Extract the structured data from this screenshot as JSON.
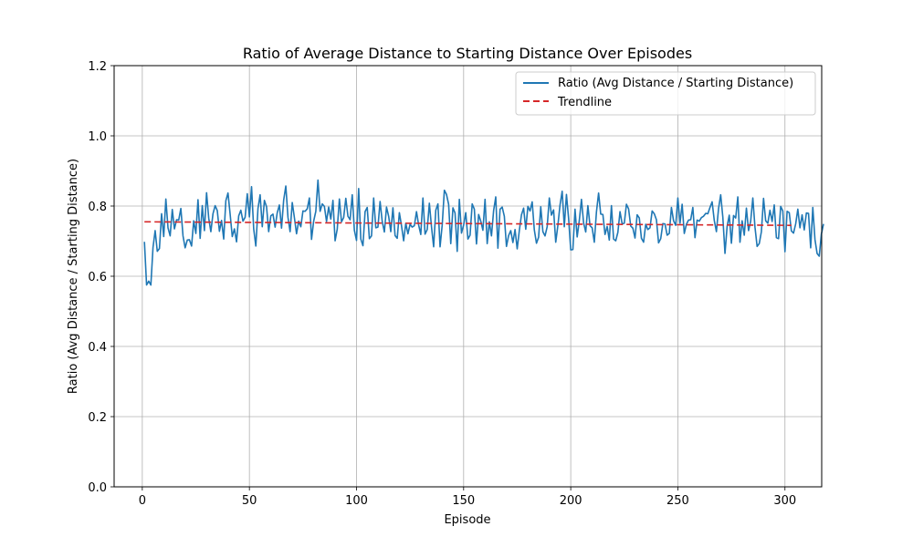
{
  "chart_data": {
    "type": "line",
    "title": "Ratio of Average Distance to Starting Distance Over Episodes",
    "xlabel": "Episode",
    "ylabel": "Ratio (Avg Distance / Starting Distance)",
    "xlim": [
      -13.15,
      317.15
    ],
    "ylim": [
      0,
      1.2
    ],
    "xticks": [
      0,
      50,
      100,
      150,
      200,
      250,
      300
    ],
    "xtick_labels": [
      "0",
      "50",
      "100",
      "150",
      "200",
      "250",
      "300"
    ],
    "yticks": [
      0,
      0.2,
      0.4,
      0.6,
      0.8,
      1.0,
      1.2
    ],
    "ytick_labels": [
      "0.0",
      "0.2",
      "0.4",
      "0.6",
      "0.8",
      "1.0",
      "1.2"
    ],
    "grid": true,
    "legend_position": "top-right",
    "series": [
      {
        "name": "Ratio (Avg Distance / Starting Distance)",
        "color": "#1f77b4",
        "style": "solid",
        "x_start": 1,
        "x_step": 1,
        "values": [
          0.698,
          0.575,
          0.586,
          0.575,
          0.682,
          0.73,
          0.671,
          0.679,
          0.778,
          0.713,
          0.82,
          0.738,
          0.715,
          0.79,
          0.735,
          0.761,
          0.76,
          0.793,
          0.715,
          0.681,
          0.703,
          0.704,
          0.686,
          0.758,
          0.722,
          0.818,
          0.708,
          0.801,
          0.73,
          0.838,
          0.766,
          0.727,
          0.778,
          0.801,
          0.787,
          0.728,
          0.759,
          0.706,
          0.815,
          0.837,
          0.777,
          0.713,
          0.735,
          0.698,
          0.772,
          0.788,
          0.757,
          0.768,
          0.835,
          0.769,
          0.855,
          0.735,
          0.686,
          0.793,
          0.832,
          0.741,
          0.816,
          0.798,
          0.727,
          0.772,
          0.777,
          0.74,
          0.781,
          0.803,
          0.737,
          0.817,
          0.857,
          0.768,
          0.727,
          0.81,
          0.767,
          0.721,
          0.757,
          0.741,
          0.786,
          0.785,
          0.792,
          0.823,
          0.705,
          0.757,
          0.785,
          0.874,
          0.785,
          0.806,
          0.799,
          0.756,
          0.797,
          0.763,
          0.816,
          0.701,
          0.734,
          0.82,
          0.755,
          0.767,
          0.822,
          0.771,
          0.761,
          0.832,
          0.731,
          0.702,
          0.85,
          0.706,
          0.687,
          0.784,
          0.796,
          0.707,
          0.715,
          0.823,
          0.738,
          0.74,
          0.813,
          0.756,
          0.726,
          0.797,
          0.771,
          0.727,
          0.795,
          0.716,
          0.708,
          0.781,
          0.744,
          0.701,
          0.751,
          0.721,
          0.748,
          0.74,
          0.744,
          0.784,
          0.746,
          0.719,
          0.823,
          0.72,
          0.733,
          0.808,
          0.741,
          0.684,
          0.788,
          0.806,
          0.684,
          0.746,
          0.845,
          0.833,
          0.805,
          0.693,
          0.795,
          0.78,
          0.671,
          0.819,
          0.723,
          0.746,
          0.781,
          0.706,
          0.717,
          0.806,
          0.791,
          0.692,
          0.776,
          0.757,
          0.731,
          0.819,
          0.693,
          0.755,
          0.715,
          0.787,
          0.826,
          0.68,
          0.791,
          0.797,
          0.771,
          0.685,
          0.716,
          0.73,
          0.696,
          0.733,
          0.678,
          0.73,
          0.775,
          0.794,
          0.734,
          0.799,
          0.786,
          0.812,
          0.732,
          0.694,
          0.711,
          0.798,
          0.727,
          0.715,
          0.741,
          0.823,
          0.774,
          0.789,
          0.697,
          0.745,
          0.803,
          0.842,
          0.741,
          0.833,
          0.765,
          0.675,
          0.676,
          0.791,
          0.712,
          0.759,
          0.819,
          0.752,
          0.726,
          0.801,
          0.744,
          0.738,
          0.697,
          0.783,
          0.837,
          0.777,
          0.776,
          0.719,
          0.742,
          0.703,
          0.801,
          0.706,
          0.701,
          0.725,
          0.784,
          0.749,
          0.751,
          0.805,
          0.792,
          0.743,
          0.737,
          0.709,
          0.775,
          0.766,
          0.708,
          0.697,
          0.748,
          0.733,
          0.738,
          0.786,
          0.778,
          0.761,
          0.695,
          0.707,
          0.75,
          0.749,
          0.717,
          0.722,
          0.796,
          0.758,
          0.745,
          0.823,
          0.751,
          0.805,
          0.722,
          0.748,
          0.76,
          0.761,
          0.796,
          0.71,
          0.76,
          0.757,
          0.767,
          0.771,
          0.779,
          0.778,
          0.796,
          0.812,
          0.759,
          0.727,
          0.793,
          0.832,
          0.768,
          0.665,
          0.742,
          0.774,
          0.694,
          0.773,
          0.766,
          0.826,
          0.697,
          0.758,
          0.717,
          0.794,
          0.73,
          0.757,
          0.823,
          0.74,
          0.685,
          0.693,
          0.727,
          0.822,
          0.758,
          0.751,
          0.788,
          0.756,
          0.803,
          0.71,
          0.707,
          0.799,
          0.786,
          0.67,
          0.785,
          0.781,
          0.729,
          0.723,
          0.749,
          0.791,
          0.738,
          0.775,
          0.732,
          0.78,
          0.779,
          0.681,
          0.796,
          0.705,
          0.665,
          0.657,
          0.72,
          0.749
        ]
      },
      {
        "name": "Trendline",
        "color": "#d62728",
        "style": "dashed",
        "x": [
          1,
          303
        ],
        "values": [
          0.755,
          0.745
        ]
      }
    ]
  }
}
